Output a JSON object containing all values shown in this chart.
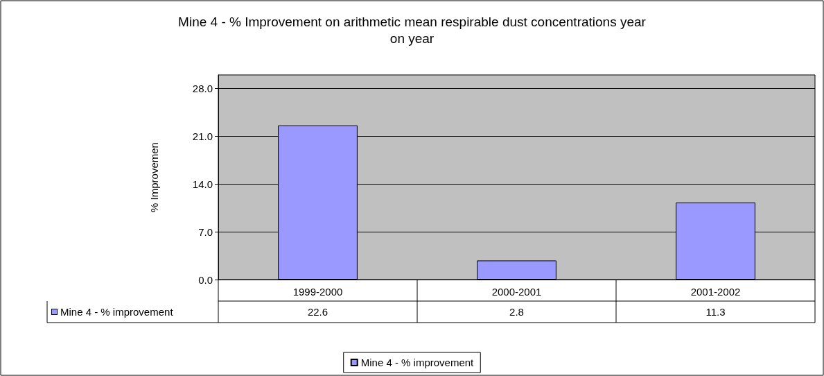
{
  "chart_data": {
    "type": "bar",
    "title": "Mine 4 - % Improvement on arithmetic mean respirable dust concentrations year\non year",
    "ylabel": "% Improvemen",
    "categories": [
      "1999-2000",
      "2000-2001",
      "2001-2002"
    ],
    "series": [
      {
        "name": "Mine 4 - % improvement",
        "color": "#9999ff",
        "values": [
          22.6,
          2.8,
          11.3
        ]
      }
    ],
    "ylim": [
      0,
      30
    ],
    "yticks": [
      {
        "value": 0,
        "label": "0.0"
      },
      {
        "value": 7,
        "label": "7.0"
      },
      {
        "value": 14,
        "label": "14.0"
      },
      {
        "value": 21,
        "label": "21.0"
      },
      {
        "value": 28,
        "label": "28.0"
      }
    ],
    "grid": "y",
    "legend": "bottom",
    "data_labels": true
  }
}
